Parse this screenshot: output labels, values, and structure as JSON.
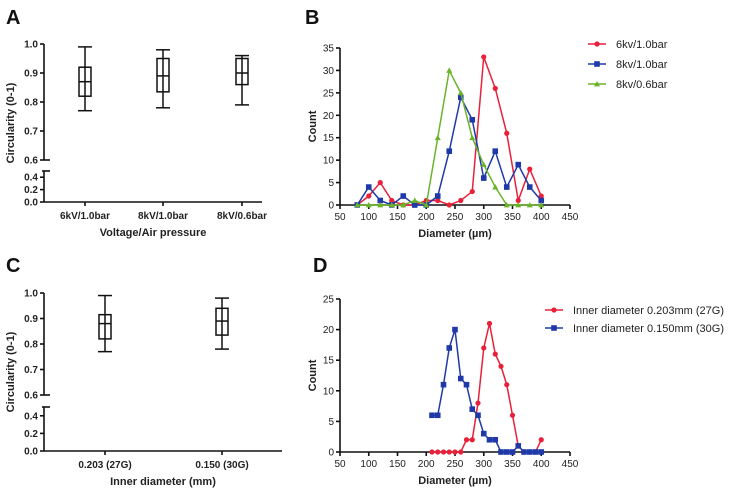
{
  "chart_data": [
    {
      "panel": "A",
      "type": "box",
      "xlabel": "Voltage/Air pressure",
      "ylabel": "Circularity (0-1)",
      "yticks_lower": [
        "0.0",
        "0.2",
        "0.4"
      ],
      "yticks_upper": [
        "0.6",
        "0.7",
        "0.8",
        "0.9",
        "1.0"
      ],
      "ylim_lower": [
        0,
        0.5
      ],
      "ylim_upper": [
        0.6,
        1.0
      ],
      "categories": [
        "6kV/1.0bar",
        "8kV/1.0bar",
        "8kV/0.6bar"
      ],
      "boxes": [
        {
          "min": 0.77,
          "q1": 0.82,
          "median": 0.87,
          "q3": 0.92,
          "max": 0.99
        },
        {
          "min": 0.78,
          "q1": 0.835,
          "median": 0.89,
          "q3": 0.95,
          "max": 0.98
        },
        {
          "min": 0.79,
          "q1": 0.86,
          "median": 0.9,
          "q3": 0.95,
          "max": 0.96
        }
      ]
    },
    {
      "panel": "B",
      "type": "line",
      "xlabel": "Diameter (µm)",
      "ylabel": "Count",
      "xlim": [
        50,
        450
      ],
      "ylim": [
        0,
        35
      ],
      "xticks": [
        50,
        100,
        150,
        200,
        250,
        300,
        350,
        400,
        450
      ],
      "yticks": [
        0,
        5,
        10,
        15,
        20,
        25,
        30,
        35
      ],
      "legend_position": "top-right",
      "x": [
        80,
        100,
        120,
        140,
        160,
        180,
        200,
        220,
        240,
        260,
        280,
        300,
        320,
        340,
        360,
        380,
        400
      ],
      "series": [
        {
          "name": "6kv/1.0bar",
          "color": "#e8203a",
          "marker": "circle",
          "values": [
            0,
            2,
            5,
            1,
            0,
            0,
            1,
            1,
            0,
            1,
            3,
            33,
            26,
            16,
            1,
            8,
            2
          ]
        },
        {
          "name": "8kv/1.0bar",
          "color": "#1f3aa8",
          "marker": "square",
          "values": [
            0,
            4,
            1,
            0,
            2,
            0,
            0,
            2,
            12,
            24,
            19,
            6,
            12,
            4,
            9,
            4,
            1
          ]
        },
        {
          "name": "8kv/0.6bar",
          "color": "#6ab42a",
          "marker": "triangle",
          "values": [
            0,
            0,
            0,
            0,
            0,
            1,
            0,
            15,
            30,
            25,
            15,
            9,
            4,
            0,
            0,
            0,
            0
          ]
        }
      ]
    },
    {
      "panel": "C",
      "type": "box",
      "xlabel": "Inner diameter (mm)",
      "ylabel": "Circularity (0-1)",
      "yticks_lower": [
        "0.0",
        "0.2",
        "0.4"
      ],
      "yticks_upper": [
        "0.6",
        "0.7",
        "0.8",
        "0.9",
        "1.0"
      ],
      "ylim_lower": [
        0,
        0.5
      ],
      "ylim_upper": [
        0.6,
        1.0
      ],
      "categories": [
        "0.203 (27G)",
        "0.150 (30G)"
      ],
      "boxes": [
        {
          "min": 0.77,
          "q1": 0.82,
          "median": 0.88,
          "q3": 0.915,
          "max": 0.99
        },
        {
          "min": 0.78,
          "q1": 0.835,
          "median": 0.89,
          "q3": 0.94,
          "max": 0.98
        }
      ]
    },
    {
      "panel": "D",
      "type": "line",
      "xlabel": "Diameter (µm)",
      "ylabel": "Count",
      "xlim": [
        50,
        450
      ],
      "ylim": [
        0,
        25
      ],
      "xticks": [
        50,
        100,
        150,
        200,
        250,
        300,
        350,
        400,
        450
      ],
      "yticks": [
        0,
        5,
        10,
        15,
        20,
        25
      ],
      "legend_position": "top-right",
      "x": [
        210,
        220,
        230,
        240,
        250,
        260,
        270,
        280,
        290,
        300,
        310,
        320,
        330,
        340,
        350,
        360,
        370,
        380,
        390,
        400
      ],
      "series": [
        {
          "name": "Inner diameter 0.203mm (27G)",
          "color": "#e8203a",
          "marker": "circle",
          "values": [
            0,
            0,
            0,
            0,
            0,
            0,
            2,
            2,
            8,
            17,
            21,
            16,
            14,
            11,
            6,
            1,
            0,
            0,
            0,
            2
          ]
        },
        {
          "name": "Inner diameter 0.150mm (30G)",
          "color": "#1f3aa8",
          "marker": "square",
          "values": [
            6,
            6,
            11,
            17,
            20,
            12,
            11,
            7,
            6,
            3,
            2,
            2,
            0,
            0,
            0,
            1,
            0,
            0,
            0,
            0
          ]
        }
      ]
    }
  ],
  "panel_letters": [
    "A",
    "B",
    "C",
    "D"
  ]
}
